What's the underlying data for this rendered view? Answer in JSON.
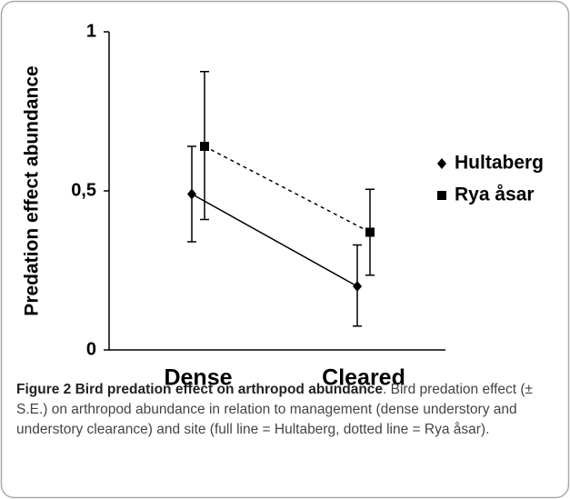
{
  "chart_data": {
    "type": "line",
    "ylabel": "Predation effect abundance",
    "categories": [
      "Dense",
      "Cleared"
    ],
    "series": [
      {
        "name": "Hultaberg",
        "color": "#000000",
        "marker": "diamond",
        "line_style": "solid",
        "values": [
          0.49,
          0.2
        ],
        "error_plus": [
          0.15,
          0.13
        ],
        "error_minus": [
          0.15,
          0.125
        ]
      },
      {
        "name": "Rya åsar",
        "color": "#000000",
        "marker": "square",
        "line_style": "dotted",
        "values": [
          0.64,
          0.37
        ],
        "error_plus": [
          0.235,
          0.135
        ],
        "error_minus": [
          0.23,
          0.135
        ]
      }
    ],
    "ylim": [
      0,
      1
    ],
    "yticks": [
      0,
      {
        "value": 0.5,
        "label": "0,5"
      },
      1
    ],
    "legend": "right",
    "caption_title": "Figure 2 Bird predation effect on arthropod abundance",
    "caption_text": ". Bird predation effect (± S.E.) on arthropod abundance in relation to management (dense understory and understory clearance) and site (full line = Hultaberg, dotted line = Rya åsar)."
  }
}
